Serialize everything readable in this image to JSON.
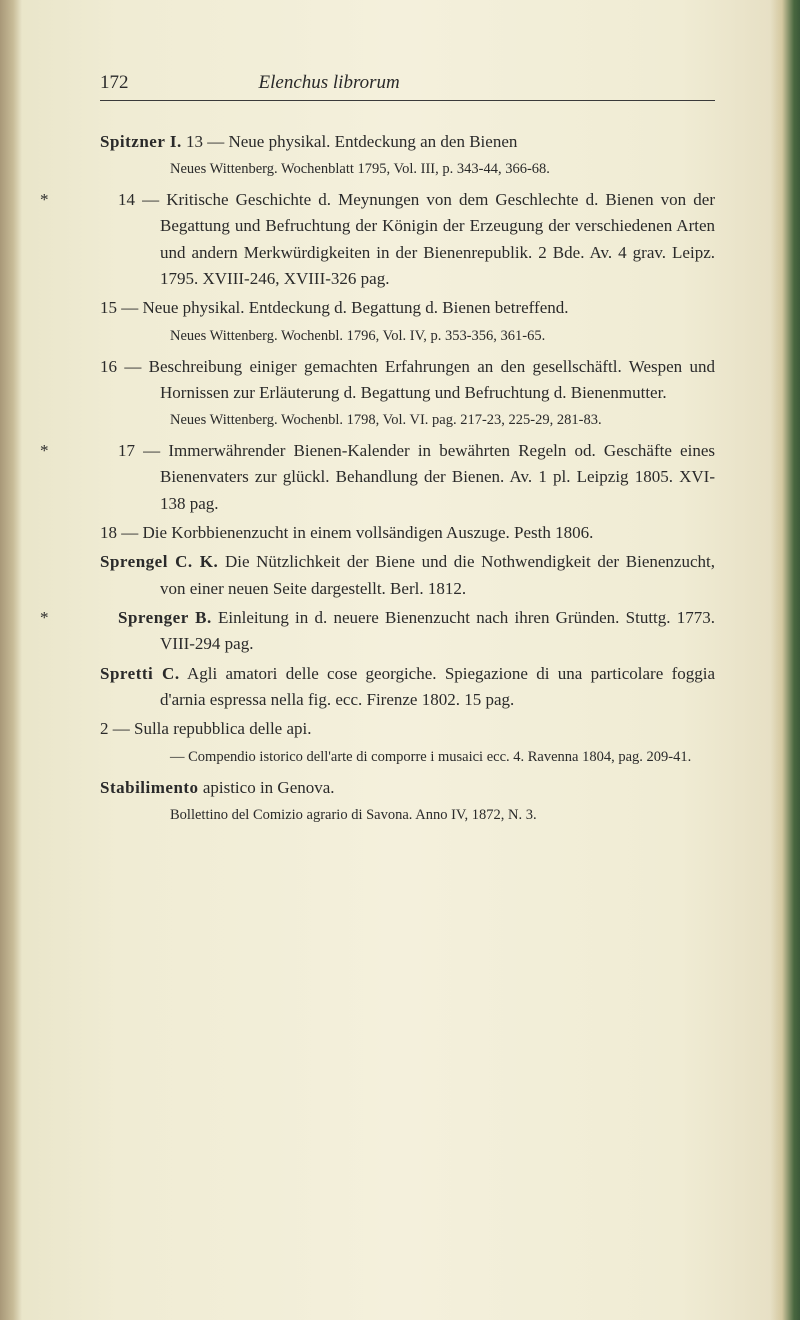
{
  "header": {
    "page_number": "172",
    "running_title": "Elenchus librorum"
  },
  "entries": [
    {
      "type": "author-line",
      "author": "Spitzner I.",
      "text": " 13 — Neue physikal. Entdeckung an den Bienen"
    },
    {
      "type": "note",
      "text": "Neues Wittenberg. Wochenblatt 1795, Vol. III, p. 343-44, 366-68."
    },
    {
      "type": "sub-entry",
      "marker": "*",
      "text": "14 — Kritische Geschichte d. Meynungen von dem Geschlechte d. Bienen von der Begattung und Befruchtung der Königin der Erzeugung der verschiedenen Arten und andern Merkwürdigkeiten in der Bienenrepublik. 2 Bde. Av. 4 grav. Leipz. 1795. XVIII-246, XVIII-326 pag."
    },
    {
      "type": "sub-entry",
      "text": "15 — Neue physikal. Entdeckung d. Begattung d. Bienen betreffend."
    },
    {
      "type": "note",
      "text": "Neues Wittenberg. Wochenbl. 1796, Vol. IV, p. 353-356, 361-65."
    },
    {
      "type": "sub-entry",
      "text": "16 — Beschreibung einiger gemachten Erfahrungen an den gesellschäftl. Wespen und Hornissen zur Erläuterung d. Begattung und Befruchtung d. Bienenmutter."
    },
    {
      "type": "note",
      "text": "Neues Wittenberg. Wochenbl. 1798, Vol. VI. pag. 217-23, 225-29, 281-83."
    },
    {
      "type": "sub-entry",
      "marker": "*",
      "text": "17 — Immerwährender Bienen-Kalender in bewährten Regeln od. Geschäfte eines Bienenvaters zur glückl. Behandlung der Bienen. Av. 1 pl. Leipzig 1805. XVI-138 pag."
    },
    {
      "type": "sub-entry",
      "text": "18 — Die Korbbienenzucht in einem vollsändigen Auszuge. Pesth 1806."
    },
    {
      "type": "author-line",
      "author": "Sprengel C. K.",
      "text": " Die Nützlichkeit der Biene und die Nothwendigkeit der Bienenzucht, von einer neuen Seite dargestellt. Berl. 1812."
    },
    {
      "type": "author-line",
      "marker": "*",
      "author": "Sprenger B.",
      "text": " Einleitung in d. neuere Bienenzucht nach ihren Gründen. Stuttg. 1773. VIII-294 pag."
    },
    {
      "type": "author-line",
      "author": "Spretti C.",
      "text": " Agli amatori delle cose georgiche. Spiegazione di una particolare foggia d'arnia espressa nella fig. ecc. Firenze 1802. 15 pag."
    },
    {
      "type": "sub-entry",
      "text": "2 — Sulla repubblica delle api."
    },
    {
      "type": "note",
      "text": "— Compendio istorico dell'arte di comporre i musaici ecc. 4. Ravenna 1804, pag. 209-41."
    },
    {
      "type": "author-line",
      "author": "Stabilimento",
      "text": " apistico in Genova."
    },
    {
      "type": "note-flat",
      "text": "Bollettino del Comizio agrario di Savona. Anno IV, 1872, N. 3."
    }
  ]
}
